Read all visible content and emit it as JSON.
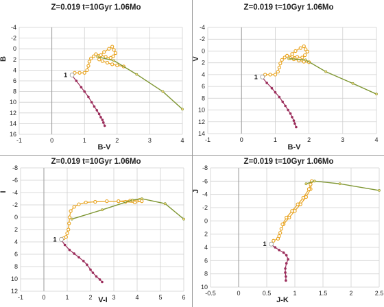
{
  "chart_data": [
    {
      "type": "line",
      "title": "Z=0.019  t=10Gyr  1.06Mo",
      "xlabel": "B-V",
      "ylabel": "B",
      "xlim": [
        -1,
        4
      ],
      "ylim": [
        16,
        -4
      ],
      "yreversed": true,
      "xticks": [
        -1,
        0,
        1,
        2,
        3,
        4
      ],
      "yticks": [
        -4,
        -2,
        0,
        2,
        4,
        6,
        8,
        10,
        12,
        14,
        16
      ],
      "xticklabels": [
        "-1",
        "0",
        "1",
        "2",
        "3",
        "4"
      ],
      "yticklabels": [
        "-4",
        "-2",
        "0",
        "2",
        "4",
        "6",
        "8",
        "10",
        "12",
        "14",
        "16"
      ],
      "grid": true,
      "annotations": [
        {
          "text": "1",
          "x": 0.62,
          "y": 4.9
        }
      ],
      "series": [
        {
          "style": "lower-ms-points",
          "color": "#9b2d5b",
          "x": [
            0.62,
            0.75,
            0.9,
            1.0,
            1.12,
            1.22,
            1.3,
            1.38,
            1.45,
            1.5,
            1.55,
            1.58,
            1.62
          ],
          "y": [
            5.0,
            6.0,
            7.2,
            8.0,
            9.0,
            10.0,
            10.8,
            11.5,
            12.2,
            12.8,
            13.3,
            13.8,
            14.4
          ]
        },
        {
          "style": "isochrone-points",
          "color": "#e8a21c",
          "x": [
            0.62,
            0.7,
            0.85,
            1.0,
            1.08,
            1.12,
            1.15,
            1.2,
            1.28,
            1.35,
            1.5,
            1.65,
            1.8,
            1.88,
            1.95,
            1.9,
            1.85,
            1.75,
            1.6,
            1.5,
            1.45,
            1.55,
            1.7,
            1.85,
            2.0,
            2.2
          ],
          "y": [
            4.9,
            4.5,
            4.5,
            4.5,
            4.0,
            3.2,
            2.4,
            1.8,
            1.4,
            1.0,
            1.2,
            1.5,
            1.7,
            1.4,
            0.8,
            0.2,
            -0.4,
            0.0,
            0.6,
            1.2,
            2.0,
            2.3,
            2.6,
            2.9,
            3.1,
            3.3
          ]
        },
        {
          "style": "agb-line",
          "color": "#7e9632",
          "x": [
            1.4,
            1.9,
            2.6,
            3.4,
            4.0
          ],
          "y": [
            1.5,
            2.2,
            4.8,
            8.0,
            11.3
          ]
        }
      ]
    },
    {
      "type": "line",
      "title": "Z=0.019  t=10Gyr  1.06Mo",
      "xlabel": "B-V",
      "ylabel": "V",
      "xlim": [
        -1,
        4
      ],
      "ylim": [
        14,
        -4
      ],
      "yreversed": true,
      "xticks": [
        -1,
        0,
        1,
        2,
        3,
        4
      ],
      "yticks": [
        -4,
        -2,
        0,
        2,
        4,
        6,
        8,
        10,
        12,
        14
      ],
      "xticklabels": [
        "-1",
        "0",
        "1",
        "2",
        "3",
        "4"
      ],
      "yticklabels": [
        "-4",
        "-2",
        "0",
        "2",
        "4",
        "6",
        "8",
        "10",
        "12",
        "14"
      ],
      "grid": true,
      "annotations": [
        {
          "text": "1",
          "x": 0.62,
          "y": 4.4
        }
      ],
      "series": [
        {
          "style": "lower-ms-points",
          "color": "#9b2d5b",
          "x": [
            0.62,
            0.75,
            0.9,
            1.0,
            1.12,
            1.22,
            1.3,
            1.38,
            1.45,
            1.5,
            1.55,
            1.58,
            1.62
          ],
          "y": [
            4.5,
            5.4,
            6.3,
            7.0,
            7.8,
            8.6,
            9.3,
            10.0,
            10.6,
            11.2,
            11.8,
            12.3,
            12.9
          ]
        },
        {
          "style": "isochrone-points",
          "color": "#e8a21c",
          "x": [
            0.62,
            0.7,
            0.85,
            1.0,
            1.08,
            1.12,
            1.15,
            1.2,
            1.28,
            1.35,
            1.5,
            1.65,
            1.8,
            1.88,
            1.95,
            1.9,
            1.85,
            1.75,
            1.6,
            1.5,
            1.45,
            1.55,
            1.7,
            1.85,
            2.0
          ],
          "y": [
            4.4,
            4.0,
            4.0,
            4.0,
            3.5,
            2.8,
            2.1,
            1.5,
            1.1,
            0.8,
            0.9,
            1.0,
            1.1,
            0.7,
            0.1,
            -0.3,
            -0.8,
            -0.5,
            0.0,
            0.5,
            1.2,
            1.4,
            1.6,
            1.8,
            1.9
          ]
        },
        {
          "style": "agb-line",
          "color": "#7e9632",
          "x": [
            1.4,
            1.9,
            2.5,
            3.3,
            4.0
          ],
          "y": [
            1.3,
            1.5,
            3.5,
            5.5,
            7.3
          ]
        }
      ]
    },
    {
      "type": "line",
      "title": "Z=0.019  t=10Gyr  1.06Mo",
      "xlabel": "V-I",
      "ylabel": "I",
      "xlim": [
        -1,
        6
      ],
      "ylim": [
        12,
        -8
      ],
      "yreversed": true,
      "xticks": [
        -1,
        0,
        1,
        2,
        3,
        4,
        5,
        6
      ],
      "yticks": [
        -8,
        -6,
        -4,
        -2,
        0,
        2,
        4,
        6,
        8,
        10,
        12
      ],
      "xticklabels": [
        "-1",
        "0",
        "1",
        "2",
        "3",
        "4",
        "5",
        "6"
      ],
      "yticklabels": [
        "-8",
        "-6",
        "-4",
        "-2",
        "0",
        "2",
        "4",
        "6",
        "8",
        "10",
        "12"
      ],
      "grid": true,
      "annotations": [
        {
          "text": "1",
          "x": 0.75,
          "y": 3.6
        }
      ],
      "series": [
        {
          "style": "lower-ms-points",
          "color": "#9b2d5b",
          "x": [
            0.75,
            0.9,
            1.1,
            1.3,
            1.5,
            1.7,
            1.85,
            2.0,
            2.1,
            2.25,
            2.4,
            2.5
          ],
          "y": [
            3.7,
            4.5,
            5.3,
            5.9,
            6.5,
            7.1,
            7.7,
            8.5,
            9.0,
            9.6,
            10.1,
            10.5
          ]
        },
        {
          "style": "isochrone-points",
          "color": "#e8a21c",
          "x": [
            0.75,
            0.85,
            0.95,
            1.0,
            1.05,
            1.08,
            1.1,
            1.15,
            1.3,
            1.5,
            1.8,
            2.2,
            2.7,
            3.2,
            3.7,
            4.1,
            4.2,
            3.9,
            3.5,
            3.2
          ],
          "y": [
            3.5,
            3.4,
            3.2,
            2.6,
            2.0,
            1.0,
            0.0,
            -1.0,
            -1.7,
            -2.1,
            -2.4,
            -2.5,
            -2.6,
            -2.6,
            -2.7,
            -2.8,
            -2.6,
            -2.4,
            -2.5,
            -2.6
          ]
        },
        {
          "style": "agb-line",
          "color": "#7e9632",
          "x": [
            1.2,
            2.5,
            3.8,
            4.2,
            5.2,
            6.0
          ],
          "y": [
            0.3,
            -1.2,
            -2.8,
            -3.0,
            -2.2,
            0.3
          ]
        }
      ]
    },
    {
      "type": "line",
      "title": "Z=0.019  t=10Gyr  1.06Mo",
      "xlabel": "J-K",
      "ylabel": "J",
      "xlim": [
        -0.5,
        2.5
      ],
      "ylim": [
        10,
        -8
      ],
      "yreversed": true,
      "xticks": [
        -0.5,
        0,
        0.5,
        1,
        1.5,
        2,
        2.5
      ],
      "yticks": [
        -8,
        -6,
        -4,
        -2,
        0,
        2,
        4,
        6,
        8,
        10
      ],
      "xticklabels": [
        "-0.5",
        "0",
        "0.5",
        "1",
        "1.5",
        "2",
        "2.5"
      ],
      "yticklabels": [
        "-8",
        "-6",
        "-4",
        "-2",
        "0",
        "2",
        "4",
        "6",
        "8",
        "10"
      ],
      "grid": true,
      "annotations": [
        {
          "text": "1",
          "x": 0.58,
          "y": 3.5
        }
      ],
      "series": [
        {
          "style": "lower-ms-points",
          "color": "#9b2d5b",
          "x": [
            0.58,
            0.65,
            0.72,
            0.8,
            0.85,
            0.88,
            0.85,
            0.83,
            0.83,
            0.84,
            0.84
          ],
          "y": [
            3.6,
            4.0,
            4.4,
            4.8,
            5.2,
            5.8,
            6.4,
            7.2,
            7.8,
            8.4,
            9.0
          ]
        },
        {
          "style": "isochrone-points",
          "color": "#e8a21c",
          "x": [
            0.58,
            0.62,
            0.7,
            0.72,
            0.74,
            0.76,
            0.8,
            0.9,
            1.0,
            1.1,
            1.2,
            1.28,
            1.3,
            1.28,
            1.25,
            1.15,
            1.05,
            0.95,
            0.85,
            0.78
          ],
          "y": [
            3.5,
            3.0,
            2.7,
            2.3,
            1.8,
            1.2,
            0.5,
            -0.5,
            -1.5,
            -2.5,
            -3.6,
            -4.8,
            -6.0,
            -5.5,
            -4.8,
            -3.5,
            -2.5,
            -1.5,
            -0.5,
            0.5
          ]
        },
        {
          "style": "agb-line",
          "color": "#7e9632",
          "x": [
            1.2,
            1.35,
            1.8,
            2.5
          ],
          "y": [
            -5.6,
            -6.0,
            -5.6,
            -4.6
          ]
        }
      ]
    }
  ]
}
